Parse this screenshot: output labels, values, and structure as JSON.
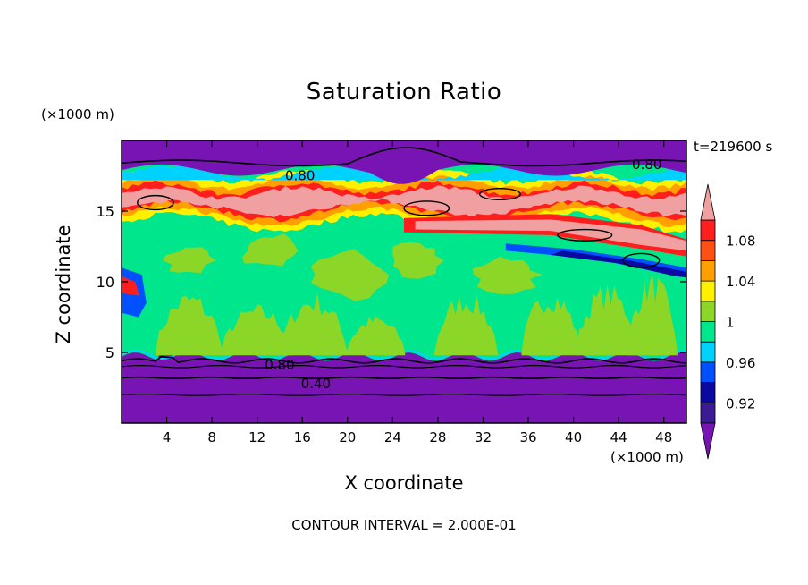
{
  "chart_data": {
    "type": "heatmap",
    "title": "Saturation Ratio",
    "xlabel": "X coordinate",
    "ylabel": "Z coordinate",
    "x_unit": "(×1000 m)",
    "z_unit": "(×1000 m)",
    "time_label": "t=219600 s",
    "footer": "CONTOUR INTERVAL = 2.000E-01",
    "xlim": [
      0,
      50
    ],
    "ylim": [
      0,
      20
    ],
    "x_ticks": [
      4,
      8,
      12,
      16,
      20,
      24,
      28,
      32,
      36,
      40,
      44,
      48
    ],
    "y_ticks": [
      5,
      10,
      15
    ],
    "colorbar": {
      "tick_labels": [
        "0.92",
        "0.96",
        "1",
        "1.04",
        "1.08"
      ],
      "tick_values": [
        0.92,
        0.96,
        1.0,
        1.04,
        1.08
      ],
      "bounds": [
        0.9,
        0.92,
        0.94,
        0.96,
        0.98,
        1.0,
        1.02,
        1.04,
        1.06,
        1.08,
        1.1
      ],
      "colors": [
        "#3c1a96",
        "#0a0aa0",
        "#0050ff",
        "#00d2ff",
        "#00e68c",
        "#8cd628",
        "#fff000",
        "#ffa000",
        "#ff5014",
        "#ff1e1e"
      ],
      "under_color": "#7814b4",
      "over_color": "#f0a0a0"
    },
    "contour_labels": [
      {
        "text": "0.80",
        "x": 15.8,
        "z": 17.5
      },
      {
        "text": "0.80",
        "x": 46.5,
        "z": 18.3
      },
      {
        "text": "0.80",
        "x": 14.0,
        "z": 4.1
      },
      {
        "text": "0.40",
        "x": 17.2,
        "z": 2.8
      }
    ],
    "colors": {
      "under": "#7814b4",
      "green": "#8cd628",
      "sea_green": "#00e68c",
      "cyan": "#00d2ff",
      "pink": "#f0a0a0",
      "red": "#ff1e1e",
      "orange": "#ffa000",
      "yellow": "#fff000",
      "blue": "#0050ff",
      "navy": "#0a0aa0"
    }
  }
}
